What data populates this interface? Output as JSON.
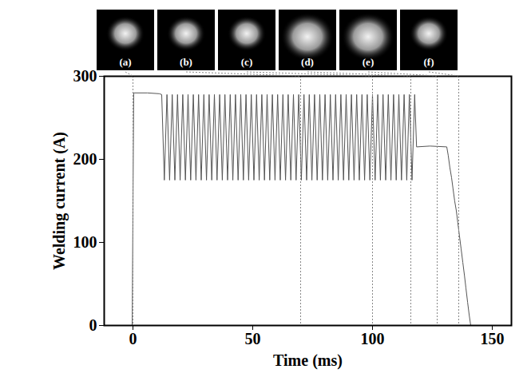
{
  "chart_data": {
    "type": "line",
    "xlabel": "Time (ms)",
    "ylabel": "Welding current (A)",
    "color": "#555555",
    "xlim": [
      -12,
      158
    ],
    "xticks": [
      0,
      50,
      100,
      150
    ],
    "ylim": [
      0,
      300
    ],
    "yticks": [
      0,
      100,
      200,
      300
    ],
    "snapshots": {
      "labels": [
        "(a)",
        "(b)",
        "(c)",
        "(d)",
        "(e)",
        "(f)"
      ],
      "times": [
        0,
        70,
        100,
        116,
        127,
        136
      ]
    },
    "x": [
      -1.5,
      -0.3,
      0.3,
      6,
      11,
      12,
      13.1,
      14.2,
      15.3,
      16.4,
      17.5,
      18.6,
      19.7,
      20.8,
      21.9,
      23,
      24.1,
      25.2,
      26.3,
      27.4,
      28.5,
      29.6,
      30.7,
      31.8,
      32.9,
      34,
      35.1,
      36.2,
      37.3,
      38.4,
      39.5,
      40.6,
      41.7,
      42.8,
      43.9,
      45,
      46.1,
      47.2,
      48.3,
      49.4,
      50.5,
      51.6,
      52.7,
      53.8,
      54.9,
      56,
      57.1,
      58.2,
      59.3,
      60.4,
      61.5,
      62.6,
      63.7,
      64.8,
      65.9,
      67,
      68.1,
      69.2,
      70.3,
      71.4,
      72.5,
      73.6,
      74.7,
      75.8,
      76.9,
      78,
      79.1,
      80.2,
      81.3,
      82.4,
      83.5,
      84.6,
      85.7,
      86.8,
      87.9,
      89,
      90.1,
      91.2,
      92.3,
      93.4,
      94.5,
      95.6,
      96.7,
      97.8,
      98.9,
      100,
      101.1,
      102.2,
      103.3,
      104.4,
      105.5,
      106.6,
      107.7,
      108.8,
      109.9,
      111,
      112.1,
      113.2,
      114.3,
      115.4,
      116.5,
      117.6,
      118.4,
      124,
      131,
      131.6,
      132.3,
      133,
      133.6,
      134.3,
      135,
      135.6,
      136.3,
      137,
      137.7,
      138.4,
      139,
      139.7,
      140.4,
      141,
      142
    ],
    "values": [
      0,
      0,
      280,
      280,
      279,
      278,
      175,
      278,
      175,
      278,
      175,
      278,
      175,
      278,
      175,
      278,
      175,
      278,
      175,
      278,
      175,
      278,
      175,
      278,
      175,
      278,
      175,
      278,
      175,
      278,
      175,
      278,
      175,
      278,
      175,
      278,
      175,
      278,
      175,
      278,
      175,
      278,
      175,
      278,
      175,
      278,
      175,
      278,
      175,
      278,
      175,
      278,
      175,
      278,
      175,
      278,
      175,
      278,
      175,
      278,
      175,
      278,
      175,
      278,
      175,
      278,
      175,
      278,
      175,
      278,
      175,
      278,
      175,
      278,
      175,
      278,
      175,
      278,
      175,
      278,
      175,
      278,
      175,
      278,
      175,
      278,
      175,
      278,
      175,
      278,
      175,
      278,
      175,
      278,
      175,
      278,
      175,
      278,
      175,
      278,
      175,
      278,
      215,
      216,
      215,
      205,
      190,
      178,
      165,
      150,
      138,
      124,
      108,
      92,
      76,
      60,
      45,
      28,
      12,
      0,
      0
    ]
  }
}
